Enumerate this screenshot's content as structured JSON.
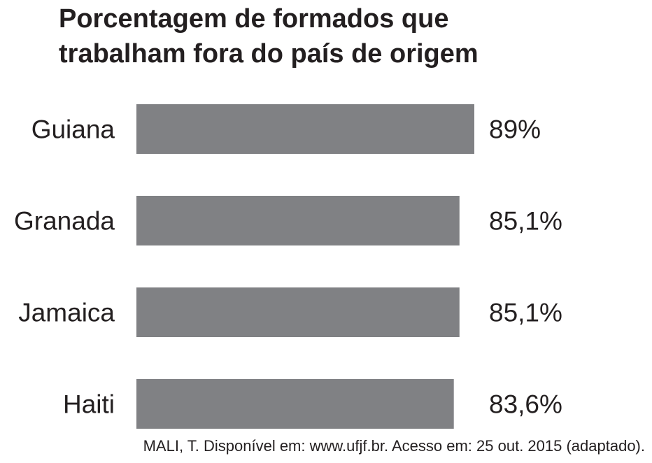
{
  "chart_data": {
    "type": "bar",
    "orientation": "horizontal",
    "title_lines": [
      "Porcentagem de formados que",
      "trabalham fora do país de origem"
    ],
    "categories": [
      "Guiana",
      "Granada",
      "Jamaica",
      "Haiti"
    ],
    "values": [
      89,
      85.1,
      85.1,
      83.6
    ],
    "value_labels": [
      "89%",
      "85,1%",
      "85,1%",
      "83,6%"
    ],
    "bar_color": "#808184",
    "grid": false,
    "legend": "none"
  },
  "source": "MALI, T. Disponível em: www.ufjf.br. Acesso em: 25 out. 2015 (adaptado)."
}
